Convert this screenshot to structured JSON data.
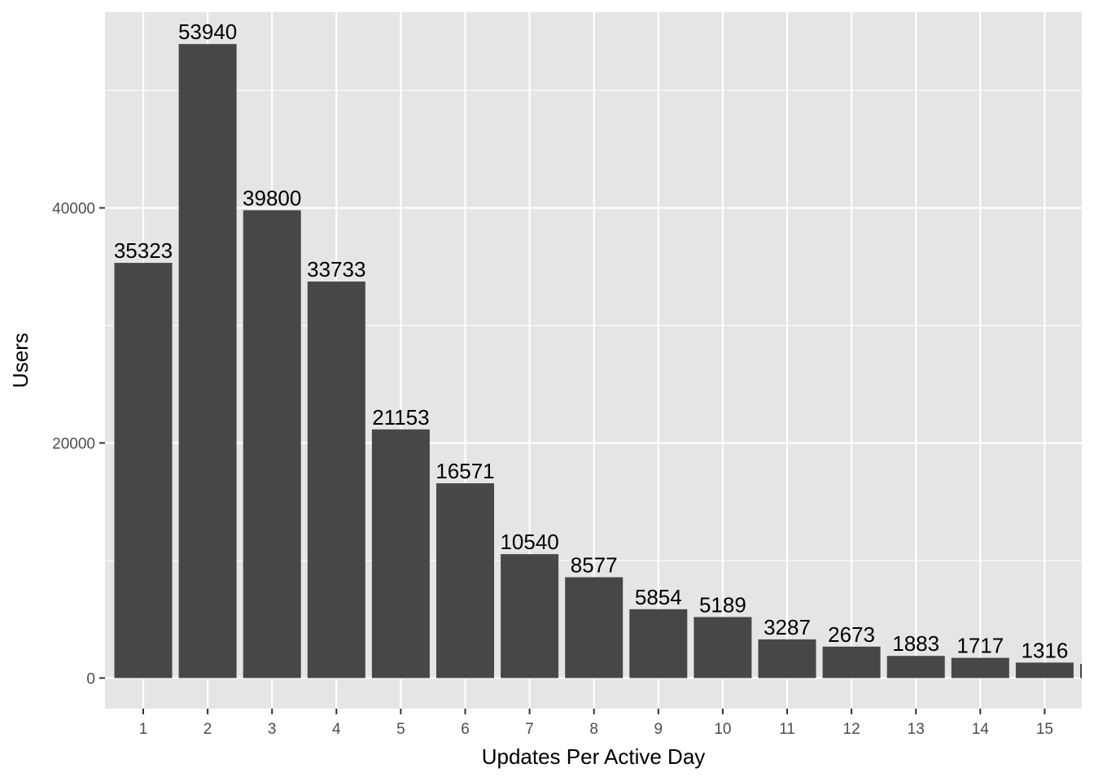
{
  "chart_data": {
    "type": "bar",
    "categories": [
      "1",
      "2",
      "3",
      "4",
      "5",
      "6",
      "7",
      "8",
      "9",
      "10",
      "11",
      "12",
      "13",
      "14",
      "15"
    ],
    "values": [
      35323,
      53940,
      39800,
      33733,
      21153,
      16571,
      10540,
      8577,
      5854,
      5189,
      3287,
      2673,
      1883,
      1717,
      1316
    ],
    "data_labels": [
      "35323",
      "53940",
      "39800",
      "33733",
      "21153",
      "16571",
      "10540",
      "8577",
      "5854",
      "5189",
      "3287",
      "2673",
      "1883",
      "1717",
      "1316"
    ],
    "title": "",
    "xlabel": "Updates Per Active Day",
    "ylabel": "Users",
    "ylim": [
      -2600,
      56650
    ],
    "yticks": [
      0,
      20000,
      40000
    ],
    "ytick_labels": [
      "0",
      "20000",
      "40000"
    ],
    "y_minor_ticks": [
      10000,
      30000,
      50000
    ],
    "truncated_next_bar": {
      "category": "16",
      "value": 1200
    },
    "grid": true,
    "legend": "none",
    "colors": {
      "panel_background": "#e5e5e5",
      "grid_line": "#ffffff",
      "bar_fill": "#474747",
      "tick_text": "#4d4d4d",
      "axis_title": "#000000",
      "label_text": "#000000"
    }
  }
}
